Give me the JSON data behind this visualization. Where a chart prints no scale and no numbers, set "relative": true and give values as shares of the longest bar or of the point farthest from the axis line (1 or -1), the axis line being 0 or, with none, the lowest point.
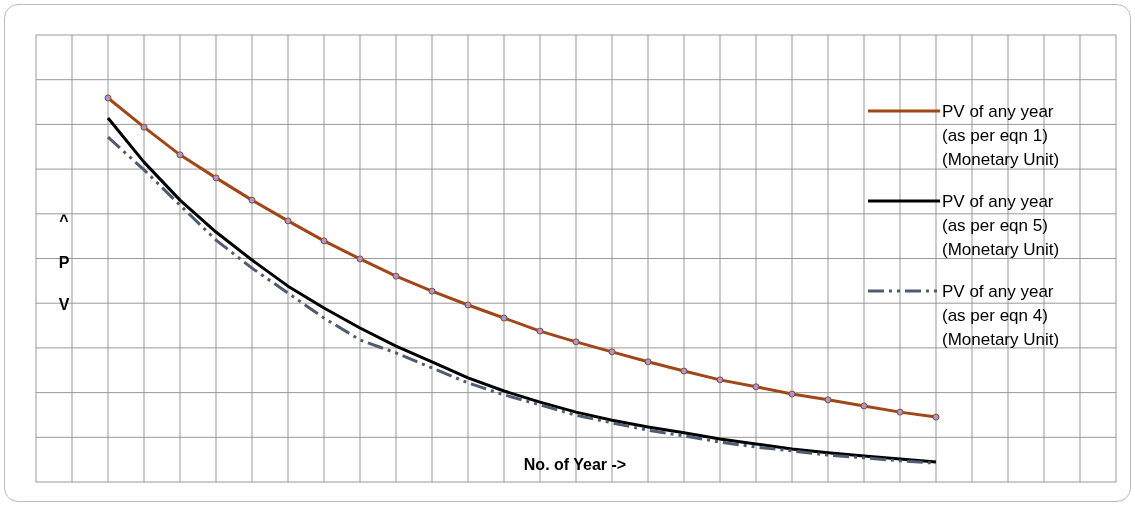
{
  "chart_data": {
    "type": "line",
    "relative": true,
    "xlabel": "No. of Year ->",
    "ylabel": "^ P V",
    "grid": true,
    "legend": "right",
    "categories": [
      null,
      null,
      null,
      null,
      null,
      null,
      null,
      null,
      null,
      null,
      null,
      null,
      null,
      null,
      null,
      null,
      null,
      null,
      null,
      null,
      null,
      null,
      null,
      null
    ],
    "series": [
      {
        "name": "PV of any year (as per eqn 1) (Monetary Unit)",
        "color": "#a0471a",
        "marker": "circle",
        "line_style": "solid",
        "values": [
          1,
          0.924,
          0.852,
          0.792,
          0.734,
          0.68,
          0.628,
          0.581,
          0.536,
          0.497,
          0.461,
          0.427,
          0.393,
          0.365,
          0.339,
          0.313,
          0.289,
          0.266,
          0.248,
          0.229,
          0.214,
          0.198,
          0.182,
          0.169
        ]
      },
      {
        "name": "PV of any year (as per eqn 5) (Monetary Unit)",
        "color": "#000000",
        "marker": "none",
        "line_style": "solid",
        "values": [
          0.948,
          0.833,
          0.734,
          0.651,
          0.578,
          0.51,
          0.453,
          0.401,
          0.354,
          0.313,
          0.271,
          0.237,
          0.208,
          0.182,
          0.161,
          0.143,
          0.128,
          0.112,
          0.099,
          0.086,
          0.076,
          0.068,
          0.06,
          0.052
        ]
      },
      {
        "name": "PV of any year (as per eqn 4) (Monetary Unit)",
        "color": "#4f5b70",
        "marker": "none",
        "line_style": "dashed",
        "values": [
          0.898,
          0.813,
          0.721,
          0.63,
          0.557,
          0.492,
          0.427,
          0.37,
          0.336,
          0.297,
          0.258,
          0.227,
          0.201,
          0.174,
          0.154,
          0.135,
          0.12,
          0.104,
          0.091,
          0.081,
          0.07,
          0.063,
          0.055,
          0.049
        ]
      }
    ]
  }
}
